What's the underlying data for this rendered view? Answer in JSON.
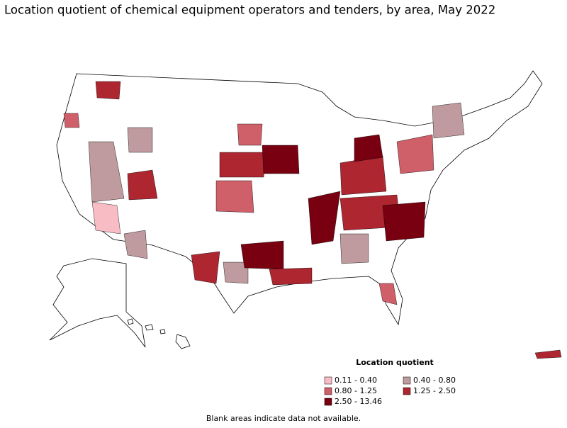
{
  "title": "Location quotient of chemical equipment operators and tenders, by area, May 2022",
  "legend": {
    "title": "Location quotient",
    "items": [
      {
        "label": "0.11 - 0.40",
        "color": "#f7bcc4"
      },
      {
        "label": "0.40 - 0.80",
        "color": "#bf9a9e"
      },
      {
        "label": "0.80 - 1.25",
        "color": "#cf5f68"
      },
      {
        "label": "1.25 - 2.50",
        "color": "#ad2630"
      },
      {
        "label": "2.50 - 13.46",
        "color": "#780010"
      }
    ]
  },
  "note": "Blank areas indicate data not available."
}
